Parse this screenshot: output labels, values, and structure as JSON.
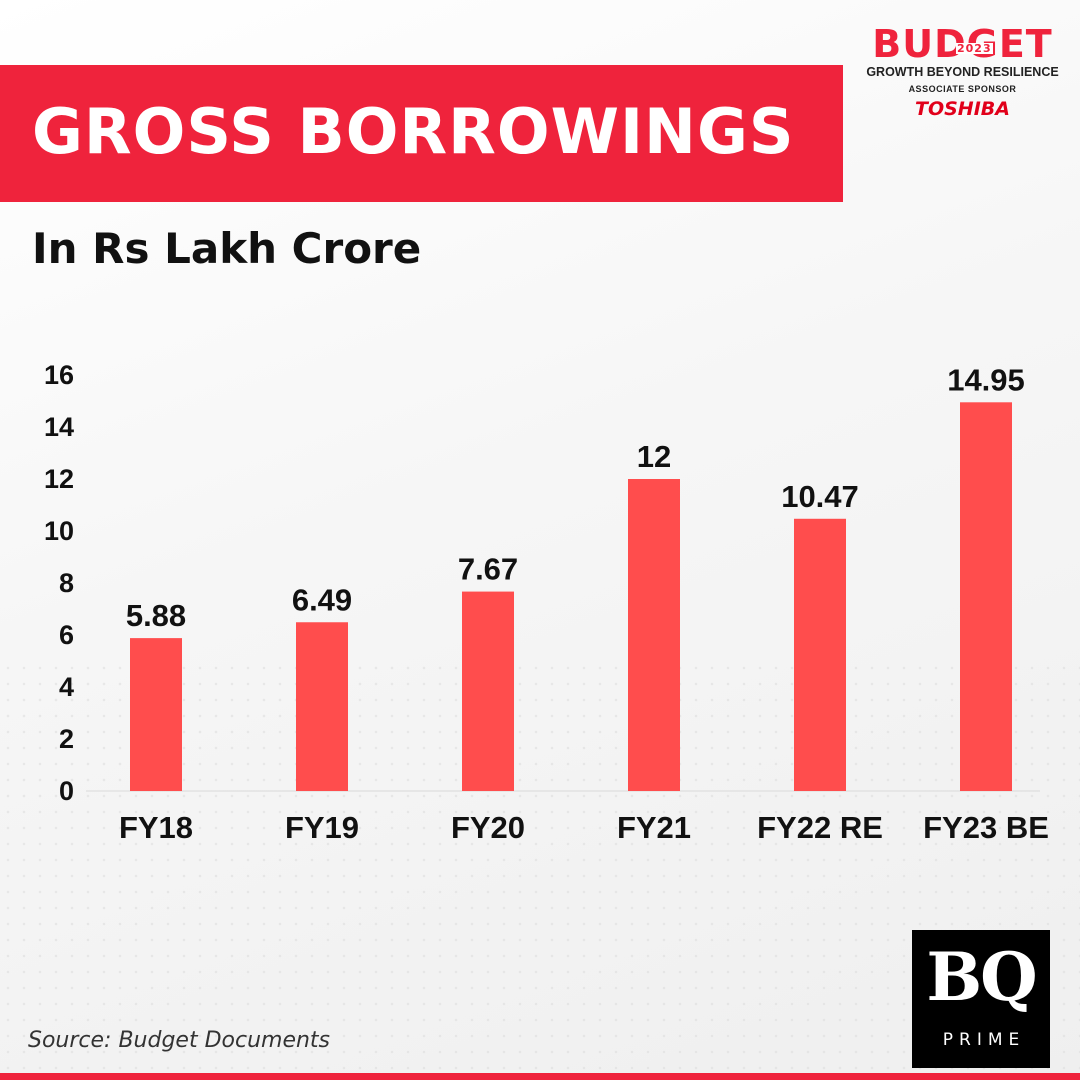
{
  "header": {
    "title": "GROSS BORROWINGS",
    "subtitle": "In Rs Lakh Crore"
  },
  "logo": {
    "word": "BUDGET",
    "year": "2023",
    "tagline": "GROWTH BEYOND RESILIENCE",
    "sponsor_label": "ASSOCIATE SPONSOR",
    "sponsor_name": "TOSHIBA"
  },
  "chart_data": {
    "type": "bar",
    "title": "GROSS BORROWINGS",
    "subtitle": "In Rs Lakh Crore",
    "categories": [
      "FY18",
      "FY19",
      "FY20",
      "FY21",
      "FY22 RE",
      "FY23 BE"
    ],
    "values": [
      5.88,
      6.49,
      7.67,
      12,
      10.47,
      14.95
    ],
    "value_labels": [
      "5.88",
      "6.49",
      "7.67",
      "12",
      "10.47",
      "14.95"
    ],
    "ylim": [
      0,
      16
    ],
    "yticks": [
      0,
      2,
      4,
      6,
      8,
      10,
      12,
      14,
      16
    ],
    "grid": false,
    "bar_color": "#ff4d4d"
  },
  "footer": {
    "source": "Source: Budget Documents",
    "brand_mark": "BQ",
    "brand_sub": "PRIME"
  },
  "colors": {
    "accent": "#ef233c",
    "text": "#111111"
  }
}
